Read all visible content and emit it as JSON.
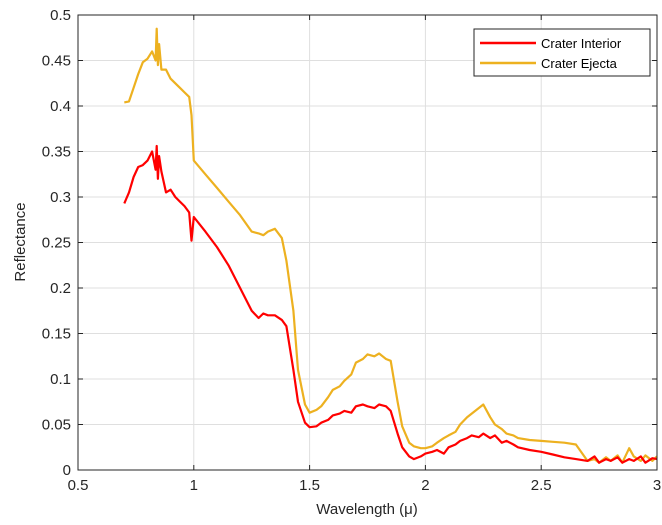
{
  "chart_data": {
    "type": "line",
    "xlabel": "Wavelength (μ)",
    "ylabel": "Reflectance",
    "xlim": [
      0.5,
      3
    ],
    "ylim": [
      0,
      0.5
    ],
    "x_ticks": [
      "0.5",
      "1",
      "1.5",
      "2",
      "2.5",
      "3"
    ],
    "y_ticks": [
      "0",
      "0.05",
      "0.1",
      "0.15",
      "0.2",
      "0.25",
      "0.3",
      "0.35",
      "0.4",
      "0.45",
      "0.5"
    ],
    "grid": true,
    "legend_position": "top-right",
    "series": [
      {
        "name": "Crater Interior",
        "color": "#ff0000",
        "x": [
          0.7,
          0.72,
          0.74,
          0.76,
          0.78,
          0.8,
          0.82,
          0.835,
          0.84,
          0.845,
          0.85,
          0.86,
          0.88,
          0.9,
          0.92,
          0.94,
          0.96,
          0.98,
          0.99,
          1.0,
          1.05,
          1.1,
          1.15,
          1.2,
          1.25,
          1.28,
          1.3,
          1.32,
          1.35,
          1.38,
          1.4,
          1.43,
          1.45,
          1.48,
          1.5,
          1.53,
          1.55,
          1.58,
          1.6,
          1.63,
          1.65,
          1.68,
          1.7,
          1.73,
          1.75,
          1.78,
          1.8,
          1.83,
          1.85,
          1.88,
          1.9,
          1.93,
          1.95,
          1.98,
          2.0,
          2.03,
          2.05,
          2.08,
          2.1,
          2.13,
          2.15,
          2.18,
          2.2,
          2.23,
          2.25,
          2.28,
          2.3,
          2.33,
          2.35,
          2.38,
          2.4,
          2.45,
          2.5,
          2.55,
          2.6,
          2.65,
          2.7,
          2.73,
          2.75,
          2.78,
          2.8,
          2.83,
          2.85,
          2.88,
          2.9,
          2.93,
          2.95,
          2.98,
          3.0
        ],
        "y": [
          0.293,
          0.305,
          0.322,
          0.333,
          0.335,
          0.34,
          0.35,
          0.33,
          0.356,
          0.32,
          0.345,
          0.328,
          0.305,
          0.308,
          0.3,
          0.295,
          0.29,
          0.283,
          0.252,
          0.278,
          0.262,
          0.245,
          0.225,
          0.2,
          0.175,
          0.167,
          0.172,
          0.17,
          0.17,
          0.165,
          0.158,
          0.11,
          0.075,
          0.052,
          0.047,
          0.048,
          0.052,
          0.055,
          0.06,
          0.062,
          0.065,
          0.063,
          0.07,
          0.072,
          0.07,
          0.068,
          0.072,
          0.07,
          0.065,
          0.04,
          0.025,
          0.015,
          0.012,
          0.015,
          0.018,
          0.02,
          0.022,
          0.018,
          0.025,
          0.028,
          0.032,
          0.035,
          0.038,
          0.036,
          0.04,
          0.035,
          0.038,
          0.03,
          0.032,
          0.028,
          0.025,
          0.022,
          0.02,
          0.017,
          0.014,
          0.012,
          0.01,
          0.015,
          0.008,
          0.012,
          0.01,
          0.014,
          0.008,
          0.012,
          0.01,
          0.015,
          0.008,
          0.013,
          0.012
        ]
      },
      {
        "name": "Crater Ejecta",
        "color": "#edb120",
        "x": [
          0.7,
          0.72,
          0.74,
          0.76,
          0.78,
          0.8,
          0.82,
          0.835,
          0.84,
          0.845,
          0.85,
          0.86,
          0.88,
          0.9,
          0.92,
          0.94,
          0.96,
          0.98,
          0.99,
          1.0,
          1.05,
          1.1,
          1.15,
          1.2,
          1.25,
          1.28,
          1.3,
          1.32,
          1.35,
          1.38,
          1.4,
          1.43,
          1.45,
          1.48,
          1.5,
          1.53,
          1.55,
          1.58,
          1.6,
          1.63,
          1.65,
          1.68,
          1.7,
          1.73,
          1.75,
          1.78,
          1.8,
          1.83,
          1.85,
          1.88,
          1.9,
          1.93,
          1.95,
          1.98,
          2.0,
          2.03,
          2.05,
          2.08,
          2.1,
          2.13,
          2.15,
          2.18,
          2.2,
          2.23,
          2.25,
          2.28,
          2.3,
          2.33,
          2.35,
          2.38,
          2.4,
          2.45,
          2.5,
          2.55,
          2.6,
          2.65,
          2.7,
          2.73,
          2.75,
          2.78,
          2.8,
          2.83,
          2.85,
          2.88,
          2.9,
          2.93,
          2.95,
          2.98,
          3.0
        ],
        "y": [
          0.404,
          0.405,
          0.42,
          0.435,
          0.448,
          0.452,
          0.46,
          0.45,
          0.485,
          0.445,
          0.468,
          0.44,
          0.44,
          0.43,
          0.425,
          0.42,
          0.415,
          0.41,
          0.39,
          0.34,
          0.325,
          0.31,
          0.295,
          0.28,
          0.262,
          0.26,
          0.258,
          0.262,
          0.265,
          0.255,
          0.23,
          0.175,
          0.11,
          0.072,
          0.063,
          0.066,
          0.07,
          0.08,
          0.088,
          0.092,
          0.098,
          0.105,
          0.118,
          0.122,
          0.127,
          0.125,
          0.128,
          0.122,
          0.12,
          0.075,
          0.048,
          0.03,
          0.026,
          0.024,
          0.024,
          0.026,
          0.03,
          0.035,
          0.038,
          0.042,
          0.05,
          0.058,
          0.062,
          0.068,
          0.072,
          0.058,
          0.05,
          0.045,
          0.04,
          0.038,
          0.035,
          0.033,
          0.032,
          0.031,
          0.03,
          0.028,
          0.01,
          0.012,
          0.008,
          0.014,
          0.01,
          0.016,
          0.008,
          0.024,
          0.015,
          0.01,
          0.016,
          0.01,
          0.015
        ]
      }
    ]
  }
}
